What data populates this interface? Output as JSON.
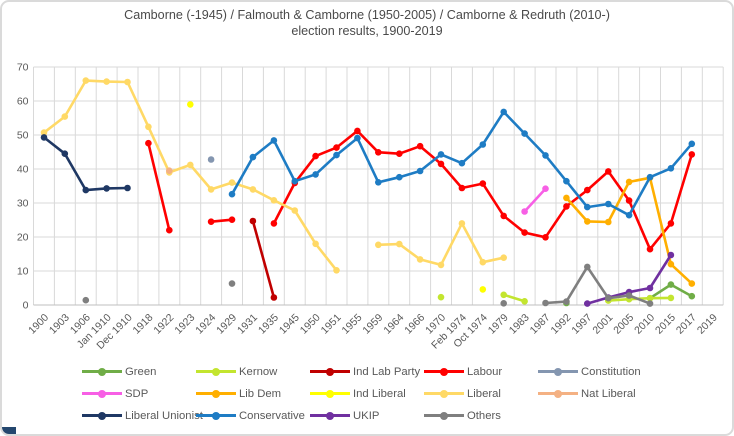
{
  "title": {
    "line1": "Camborne (-1945) / Falmouth & Camborne (1950-2005) / Camborne & Redruth (2010-)",
    "line2": "election results, 1900-2019"
  },
  "axis": {
    "yticks": [
      0,
      10,
      20,
      30,
      40,
      50,
      60,
      70
    ],
    "grid_color": "#d9d9d9",
    "axis_line_color": "#bfbfbf",
    "tick_label_color": "#595959"
  },
  "chart_data": {
    "type": "line",
    "title": "Camborne (-1945) / Falmouth & Camborne (1950-2005) / Camborne & Redruth (2010-) election results, 1900-2019",
    "ylim": [
      0,
      70
    ],
    "ytick_step": 10,
    "grid": true,
    "legend_position": "bottom",
    "categories": [
      "1900",
      "1903",
      "1906",
      "Jan 1910",
      "Dec 1910",
      "1918",
      "1922",
      "1923",
      "1924",
      "1929",
      "1931",
      "1935",
      "1945",
      "1950",
      "1951",
      "1955",
      "1959",
      "1964",
      "1966",
      "1970",
      "Feb 1974",
      "Oct 1974",
      "1979",
      "1983",
      "1987",
      "1992",
      "1997",
      "2001",
      "2005",
      "2010",
      "2015",
      "2017",
      "2019"
    ],
    "series": [
      {
        "name": "Green",
        "color": "#70AD47",
        "values": [
          null,
          null,
          null,
          null,
          null,
          null,
          null,
          null,
          null,
          null,
          null,
          null,
          null,
          null,
          null,
          null,
          null,
          null,
          null,
          null,
          null,
          null,
          null,
          null,
          null,
          0.6,
          null,
          null,
          null,
          2,
          6,
          2.6,
          null
        ]
      },
      {
        "name": "Kernow",
        "color": "#C3E52F",
        "values": [
          null,
          null,
          null,
          null,
          null,
          null,
          null,
          null,
          null,
          null,
          null,
          null,
          null,
          null,
          null,
          null,
          null,
          null,
          null,
          2.3,
          null,
          null,
          3,
          1.1,
          null,
          null,
          null,
          1.3,
          1.7,
          2,
          2.1,
          null,
          null
        ]
      },
      {
        "name": "Ind Lab Party",
        "color": "#C00000",
        "values": [
          null,
          null,
          null,
          null,
          null,
          null,
          null,
          null,
          null,
          null,
          24.7,
          2.2,
          null,
          null,
          null,
          null,
          null,
          null,
          null,
          null,
          null,
          null,
          null,
          null,
          null,
          null,
          null,
          null,
          null,
          null,
          null,
          null,
          null
        ]
      },
      {
        "name": "Labour",
        "color": "#FF0000",
        "values": [
          null,
          null,
          null,
          null,
          null,
          47.6,
          22,
          null,
          24.5,
          25.1,
          null,
          24,
          35.9,
          43.8,
          46.3,
          51.2,
          44.9,
          44.5,
          46.7,
          41.5,
          34.4,
          35.7,
          26.2,
          21.3,
          19.9,
          29,
          33.8,
          39.3,
          30.7,
          16.4,
          24,
          44.3,
          null
        ]
      },
      {
        "name": "Constitution",
        "color": "#8496B0",
        "values": [
          null,
          null,
          null,
          null,
          null,
          null,
          null,
          null,
          42.8,
          null,
          null,
          null,
          null,
          null,
          null,
          null,
          null,
          null,
          null,
          null,
          null,
          null,
          null,
          null,
          null,
          null,
          null,
          null,
          null,
          null,
          null,
          null,
          null
        ]
      },
      {
        "name": "SDP",
        "color": "#F75FE5",
        "values": [
          null,
          null,
          null,
          null,
          null,
          null,
          null,
          null,
          null,
          null,
          null,
          null,
          null,
          null,
          null,
          null,
          null,
          null,
          null,
          null,
          null,
          null,
          null,
          27.5,
          34.2,
          null,
          null,
          null,
          null,
          null,
          null,
          null,
          null
        ]
      },
      {
        "name": "Lib Dem",
        "color": "#FFAF00",
        "values": [
          null,
          null,
          null,
          null,
          null,
          null,
          null,
          null,
          null,
          null,
          null,
          null,
          null,
          null,
          null,
          null,
          null,
          null,
          null,
          null,
          null,
          null,
          null,
          null,
          null,
          31.5,
          24.6,
          24.4,
          36.2,
          37.4,
          12,
          6.3,
          null
        ]
      },
      {
        "name": "Ind Liberal",
        "color": "#FFFF00",
        "values": [
          null,
          null,
          null,
          null,
          null,
          null,
          null,
          59,
          null,
          null,
          null,
          null,
          null,
          null,
          null,
          null,
          null,
          null,
          null,
          null,
          null,
          4.6,
          null,
          null,
          null,
          null,
          null,
          null,
          null,
          null,
          null,
          null,
          null
        ]
      },
      {
        "name": "Liberal",
        "color": "#FFD966",
        "values": [
          50.7,
          55.4,
          66,
          65.7,
          65.6,
          52.4,
          39,
          41.2,
          34,
          36,
          34,
          30.8,
          27.8,
          18,
          10.2,
          null,
          17.7,
          17.9,
          13.4,
          11.8,
          24,
          12.6,
          13.9,
          null,
          null,
          null,
          null,
          null,
          null,
          null,
          null,
          null,
          null
        ]
      },
      {
        "name": "Nat Liberal",
        "color": "#F4B183",
        "values": [
          null,
          null,
          null,
          null,
          null,
          null,
          39.5,
          null,
          null,
          null,
          null,
          null,
          null,
          null,
          null,
          null,
          null,
          null,
          null,
          null,
          null,
          null,
          null,
          null,
          null,
          null,
          null,
          null,
          null,
          null,
          null,
          null,
          null
        ]
      },
      {
        "name": "Liberal Unionist",
        "color": "#1F3864",
        "values": [
          49.3,
          44.5,
          33.8,
          34.3,
          34.4,
          null,
          null,
          null,
          null,
          null,
          null,
          null,
          null,
          null,
          null,
          null,
          null,
          null,
          null,
          null,
          null,
          null,
          null,
          null,
          null,
          null,
          null,
          null,
          null,
          null,
          null,
          null,
          null
        ]
      },
      {
        "name": "Conservative",
        "color": "#1E7CC4",
        "values": [
          null,
          null,
          null,
          null,
          null,
          null,
          null,
          null,
          null,
          32.6,
          43.5,
          48.4,
          36.4,
          38.4,
          44.1,
          49.1,
          36.1,
          37.6,
          39.4,
          44.3,
          41.7,
          47.2,
          56.8,
          50.4,
          44,
          36.4,
          28.8,
          29.7,
          26.4,
          37.6,
          40.2,
          47.4,
          null
        ]
      },
      {
        "name": "UKIP",
        "color": "#7030A0",
        "values": [
          null,
          null,
          null,
          null,
          null,
          null,
          null,
          null,
          null,
          null,
          null,
          null,
          null,
          null,
          null,
          null,
          null,
          null,
          null,
          null,
          null,
          null,
          null,
          null,
          null,
          null,
          0.4,
          2.2,
          3.8,
          5,
          14.7,
          null,
          null
        ]
      },
      {
        "name": "Others",
        "color": "#7F7F7F",
        "values": [
          null,
          null,
          1.4,
          null,
          null,
          null,
          null,
          null,
          null,
          6.3,
          null,
          null,
          null,
          null,
          null,
          null,
          null,
          null,
          null,
          null,
          null,
          null,
          0.5,
          null,
          0.6,
          1,
          11.2,
          2,
          2.8,
          0.4,
          null,
          null,
          null
        ]
      }
    ]
  }
}
